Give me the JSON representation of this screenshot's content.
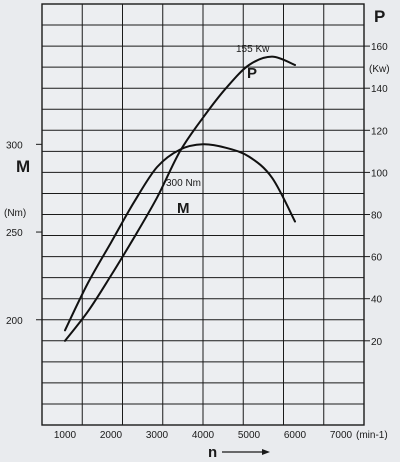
{
  "chart_data": {
    "type": "line",
    "xlabel": "n",
    "xunit": "(min-1)",
    "x_ticks": [
      1000,
      2000,
      3000,
      4000,
      5000,
      6000,
      7000
    ],
    "xlim": [
      500,
      7500
    ],
    "left_axis": {
      "label": "M",
      "unit": "(Nm)",
      "ticks": [
        200,
        250,
        300
      ],
      "ylim": [
        140,
        380
      ]
    },
    "right_axis": {
      "label": "P",
      "unit": "(Kw)",
      "ticks": [
        20,
        40,
        60,
        80,
        100,
        120,
        140,
        160
      ],
      "ylim": [
        -20,
        180
      ]
    },
    "series": [
      {
        "name": "M",
        "axis": "left",
        "points": [
          {
            "x": 1000,
            "y": 194
          },
          {
            "x": 1500,
            "y": 221
          },
          {
            "x": 2000,
            "y": 244
          },
          {
            "x": 2500,
            "y": 267
          },
          {
            "x": 3000,
            "y": 287
          },
          {
            "x": 3500,
            "y": 297
          },
          {
            "x": 4000,
            "y": 300
          },
          {
            "x": 4500,
            "y": 298
          },
          {
            "x": 5000,
            "y": 293
          },
          {
            "x": 5500,
            "y": 281
          },
          {
            "x": 6000,
            "y": 256
          }
        ]
      },
      {
        "name": "P",
        "axis": "right",
        "points": [
          {
            "x": 1000,
            "y": 20
          },
          {
            "x": 1500,
            "y": 34
          },
          {
            "x": 2000,
            "y": 51
          },
          {
            "x": 2500,
            "y": 69
          },
          {
            "x": 3000,
            "y": 88
          },
          {
            "x": 3500,
            "y": 110
          },
          {
            "x": 4000,
            "y": 126
          },
          {
            "x": 4500,
            "y": 140
          },
          {
            "x": 5000,
            "y": 151
          },
          {
            "x": 5500,
            "y": 155
          },
          {
            "x": 6000,
            "y": 151
          }
        ]
      }
    ],
    "annotations": {
      "max_power": "155 Kw",
      "max_torque": "300 Nm",
      "power_curve_label": "P",
      "torque_curve_label": "M"
    },
    "grid": true,
    "vertical_gridlines": 8,
    "horizontal_gridlines": 20
  }
}
